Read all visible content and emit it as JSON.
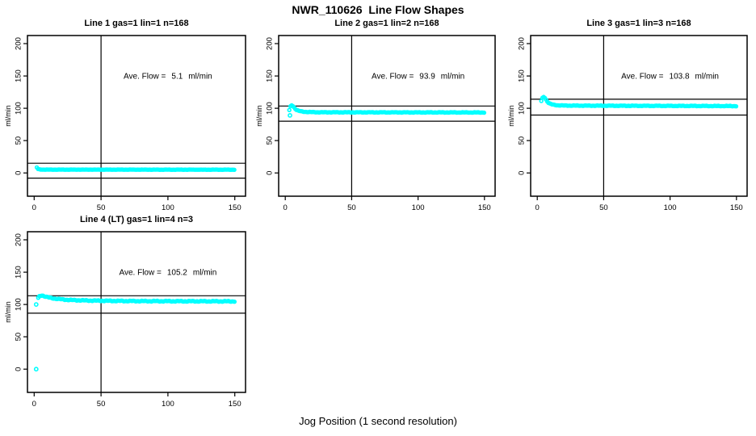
{
  "figure": {
    "title": "NWR_110626  Line Flow Shapes",
    "xlabel": "Jog Position (1 second resolution)",
    "point_color": "#00FFFF",
    "line_color": "#000000",
    "background": "#FFFFFF"
  },
  "chart_data": [
    {
      "type": "scatter",
      "title": "Line 1 gas=1 lin=1 n=168",
      "line": 1,
      "gas": 1,
      "lin": 1,
      "n": 168,
      "ave_flow_label": "Ave. Flow =",
      "ave_flow": 5.1,
      "unit": "ml/min",
      "ylabel": "ml/min",
      "xlim": [
        -5,
        158
      ],
      "ylim": [
        -36,
        212.5
      ],
      "x_ticks": [
        0,
        50,
        100,
        150
      ],
      "y_ticks": [
        0,
        50,
        100,
        150,
        200
      ],
      "vline_x": 50,
      "hlines": [
        15,
        -8
      ],
      "series_profile": [
        [
          2,
          8.5
        ],
        [
          2.9,
          6.0
        ],
        [
          4,
          5.4
        ],
        [
          6,
          5.15
        ],
        [
          10,
          5.1
        ],
        [
          150,
          5.0
        ]
      ],
      "outliers": [],
      "x_start": 2,
      "x_end": 150,
      "x_step": 0.9,
      "jitter": 0.2
    },
    {
      "type": "scatter",
      "title": "Line 2 gas=1 lin=2 n=168",
      "line": 2,
      "gas": 1,
      "lin": 2,
      "n": 168,
      "ave_flow_label": "Ave. Flow =",
      "ave_flow": 93.9,
      "unit": "ml/min",
      "ylabel": "ml/min",
      "xlim": [
        -5,
        158
      ],
      "ylim": [
        -36,
        212.5
      ],
      "x_ticks": [
        0,
        50,
        100,
        150
      ],
      "y_ticks": [
        0,
        50,
        100,
        150,
        200
      ],
      "vline_x": 50,
      "hlines": [
        103.5,
        80
      ],
      "series_profile": [
        [
          3,
          97
        ],
        [
          4,
          103.5
        ],
        [
          5,
          105
        ],
        [
          6,
          103
        ],
        [
          7,
          100
        ],
        [
          8.5,
          97.5
        ],
        [
          10,
          96
        ],
        [
          13,
          94.8
        ],
        [
          17,
          94.2
        ],
        [
          25,
          93.8
        ],
        [
          150,
          93.5
        ]
      ],
      "outliers": [
        [
          3.5,
          89
        ]
      ],
      "x_start": 3,
      "x_end": 150,
      "x_step": 0.9,
      "jitter": 0.45
    },
    {
      "type": "scatter",
      "title": "Line 3 gas=1 lin=3 n=168",
      "line": 3,
      "gas": 1,
      "lin": 3,
      "n": 168,
      "ave_flow_label": "Ave. Flow =",
      "ave_flow": 103.8,
      "unit": "ml/min",
      "ylabel": "ml/min",
      "xlim": [
        -5,
        158
      ],
      "ylim": [
        -36,
        212.5
      ],
      "x_ticks": [
        0,
        50,
        100,
        150
      ],
      "y_ticks": [
        0,
        50,
        100,
        150,
        200
      ],
      "vline_x": 50,
      "hlines": [
        114,
        89.5
      ],
      "series_profile": [
        [
          3,
          111
        ],
        [
          4,
          116.5
        ],
        [
          5,
          118
        ],
        [
          6,
          115.5
        ],
        [
          7,
          112
        ],
        [
          8,
          109
        ],
        [
          9.5,
          107
        ],
        [
          12,
          105.5
        ],
        [
          15,
          104.7
        ],
        [
          20,
          104.2
        ],
        [
          40,
          104
        ],
        [
          150,
          103.4
        ]
      ],
      "outliers": [],
      "x_start": 3,
      "x_end": 150,
      "x_step": 0.9,
      "jitter": 0.5
    },
    {
      "type": "scatter",
      "title": "Line 4 (LT) gas=1 lin=4 n=3",
      "line": 4,
      "gas": 1,
      "lin": 4,
      "n": 3,
      "ave_flow_label": "Ave. Flow =",
      "ave_flow": 105.2,
      "unit": "ml/min",
      "ylabel": "ml/min",
      "xlim": [
        -5,
        158
      ],
      "ylim": [
        -36,
        212.5
      ],
      "x_ticks": [
        0,
        50,
        100,
        150
      ],
      "y_ticks": [
        0,
        50,
        100,
        150,
        200
      ],
      "vline_x": 50,
      "hlines": [
        113.5,
        86.5
      ],
      "series_profile": [
        [
          3,
          110
        ],
        [
          4,
          112.8
        ],
        [
          5.5,
          114.2
        ],
        [
          7,
          113.3
        ],
        [
          9,
          111.8
        ],
        [
          12,
          110.3
        ],
        [
          16,
          109
        ],
        [
          21,
          107.8
        ],
        [
          28,
          106.8
        ],
        [
          38,
          106.2
        ],
        [
          55,
          105.6
        ],
        [
          80,
          105.2
        ],
        [
          110,
          105
        ],
        [
          150,
          104.8
        ]
      ],
      "outliers": [
        [
          1.5,
          0
        ],
        [
          1.5,
          100
        ]
      ],
      "x_start": 3,
      "x_end": 150,
      "x_step": 0.9,
      "jitter": 0.8
    }
  ]
}
